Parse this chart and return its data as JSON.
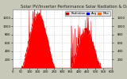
{
  "title": "Solar PV/Inverter Performance Solar Radiation & Day Average per Minute",
  "bg_color": "#c8c8b8",
  "plot_bg": "#ffffff",
  "grid_color": "#aaaaaa",
  "area_color": "#ff0000",
  "line_color": "#dd0000",
  "ylim": [
    0,
    1400
  ],
  "ytick_vals": [
    200,
    400,
    600,
    800,
    1000,
    1200
  ],
  "legend_labels": [
    "Radiation",
    "Avg",
    "Max"
  ],
  "legend_colors": [
    "#cc0000",
    "#0000ff",
    "#ff6600"
  ],
  "title_fontsize": 3.8,
  "tick_fontsize": 2.8,
  "legend_fontsize": 2.8
}
